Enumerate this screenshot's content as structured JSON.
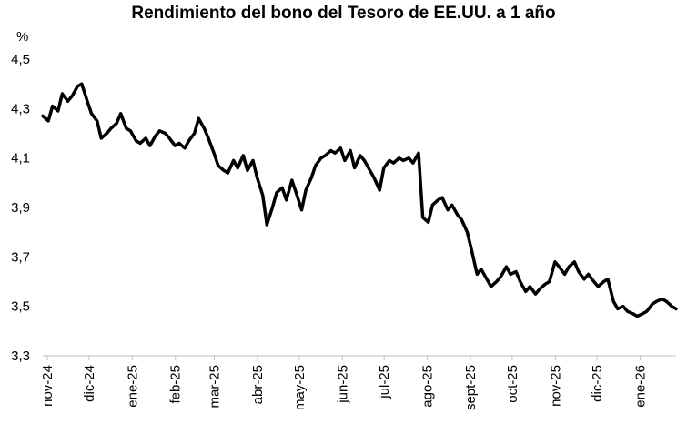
{
  "chart_data": {
    "type": "line",
    "title": "Rendimiento del bono del Tesoro de EE.UU. a 1 año",
    "ylabel": "%",
    "xlabel": "",
    "ylim": [
      3.3,
      4.5
    ],
    "yticks": [
      "4,5",
      "4,3",
      "4,1",
      "3,9",
      "3,7",
      "3,5",
      "3,3"
    ],
    "ytick_values": [
      4.5,
      4.3,
      4.1,
      3.9,
      3.7,
      3.5,
      3.3
    ],
    "xticks": [
      "nov-24",
      "dic-24",
      "ene-25",
      "feb-25",
      "mar-25",
      "abr-25",
      "may-25",
      "jun-25",
      "jul-25",
      "ago-25",
      "sept-25",
      "oct-25",
      "nov-25",
      "dic-25",
      "ene-26"
    ],
    "grid": false,
    "legend": "none",
    "line_color": "#000000",
    "series": [
      {
        "x": [
          "2024-11-01",
          "2024-11-05",
          "2024-11-08",
          "2024-11-12",
          "2024-11-15",
          "2024-11-19",
          "2024-11-22",
          "2024-11-26",
          "2024-11-29",
          "2024-12-03",
          "2024-12-06",
          "2024-12-10",
          "2024-12-13",
          "2024-12-17",
          "2024-12-20",
          "2024-12-24",
          "2024-12-27",
          "2024-12-31",
          "2025-01-03",
          "2025-01-07",
          "2025-01-10",
          "2025-01-14",
          "2025-01-17",
          "2025-01-21",
          "2025-01-24",
          "2025-01-28",
          "2025-01-31",
          "2025-02-04",
          "2025-02-07",
          "2025-02-11",
          "2025-02-14",
          "2025-02-18",
          "2025-02-21",
          "2025-02-25",
          "2025-02-28",
          "2025-03-04",
          "2025-03-07",
          "2025-03-11",
          "2025-03-14",
          "2025-03-18",
          "2025-03-21",
          "2025-03-25",
          "2025-03-28",
          "2025-04-01",
          "2025-04-04",
          "2025-04-08",
          "2025-04-11",
          "2025-04-15",
          "2025-04-18",
          "2025-04-22",
          "2025-04-25",
          "2025-04-29",
          "2025-05-02",
          "2025-05-06",
          "2025-05-09",
          "2025-05-13",
          "2025-05-16",
          "2025-05-20",
          "2025-05-23",
          "2025-05-27",
          "2025-05-30",
          "2025-06-03",
          "2025-06-06",
          "2025-06-10",
          "2025-06-13",
          "2025-06-17",
          "2025-06-20",
          "2025-06-24",
          "2025-06-27",
          "2025-07-01",
          "2025-07-04",
          "2025-07-08",
          "2025-07-11",
          "2025-07-15",
          "2025-07-18",
          "2025-07-22",
          "2025-07-25",
          "2025-07-29",
          "2025-08-01",
          "2025-08-05",
          "2025-08-08",
          "2025-08-12",
          "2025-08-15",
          "2025-08-19",
          "2025-08-22",
          "2025-08-26",
          "2025-08-29",
          "2025-09-02",
          "2025-09-05",
          "2025-09-09",
          "2025-09-12",
          "2025-09-16",
          "2025-09-19",
          "2025-09-23",
          "2025-09-26",
          "2025-09-30",
          "2025-10-03",
          "2025-10-07",
          "2025-10-10",
          "2025-10-14",
          "2025-10-17",
          "2025-10-21",
          "2025-10-24",
          "2025-10-28",
          "2025-10-31",
          "2025-11-04",
          "2025-11-07",
          "2025-11-11",
          "2025-11-14",
          "2025-11-18",
          "2025-11-21",
          "2025-11-25",
          "2025-11-28",
          "2025-12-02",
          "2025-12-05",
          "2025-12-09",
          "2025-12-12",
          "2025-12-16",
          "2025-12-19",
          "2025-12-23",
          "2025-12-26",
          "2025-12-30",
          "2026-01-02",
          "2026-01-06",
          "2026-01-09",
          "2026-01-13",
          "2026-01-16",
          "2026-01-20",
          "2026-01-23",
          "2026-01-27",
          "2026-01-30"
        ],
        "values": [
          4.27,
          4.25,
          4.31,
          4.29,
          4.36,
          4.33,
          4.35,
          4.39,
          4.4,
          4.33,
          4.28,
          4.25,
          4.18,
          4.2,
          4.22,
          4.24,
          4.28,
          4.22,
          4.21,
          4.17,
          4.16,
          4.18,
          4.15,
          4.19,
          4.21,
          4.2,
          4.18,
          4.15,
          4.16,
          4.14,
          4.17,
          4.2,
          4.26,
          4.22,
          4.18,
          4.12,
          4.07,
          4.05,
          4.04,
          4.09,
          4.06,
          4.11,
          4.05,
          4.09,
          4.02,
          3.95,
          3.83,
          3.9,
          3.96,
          3.98,
          3.93,
          4.01,
          3.96,
          3.89,
          3.97,
          4.02,
          4.07,
          4.1,
          4.11,
          4.13,
          4.12,
          4.14,
          4.09,
          4.13,
          4.06,
          4.11,
          4.09,
          4.05,
          4.02,
          3.97,
          4.06,
          4.09,
          4.08,
          4.1,
          4.09,
          4.1,
          4.08,
          4.12,
          3.86,
          3.84,
          3.91,
          3.93,
          3.94,
          3.89,
          3.91,
          3.87,
          3.85,
          3.8,
          3.73,
          3.63,
          3.65,
          3.61,
          3.58,
          3.6,
          3.62,
          3.66,
          3.63,
          3.64,
          3.6,
          3.56,
          3.58,
          3.55,
          3.57,
          3.59,
          3.6,
          3.68,
          3.66,
          3.63,
          3.66,
          3.68,
          3.64,
          3.61,
          3.63,
          3.6,
          3.58,
          3.6,
          3.61,
          3.52,
          3.49,
          3.5,
          3.48,
          3.47,
          3.46,
          3.47,
          3.48,
          3.51,
          3.52,
          3.53,
          3.52,
          3.5,
          3.49
        ]
      }
    ]
  }
}
